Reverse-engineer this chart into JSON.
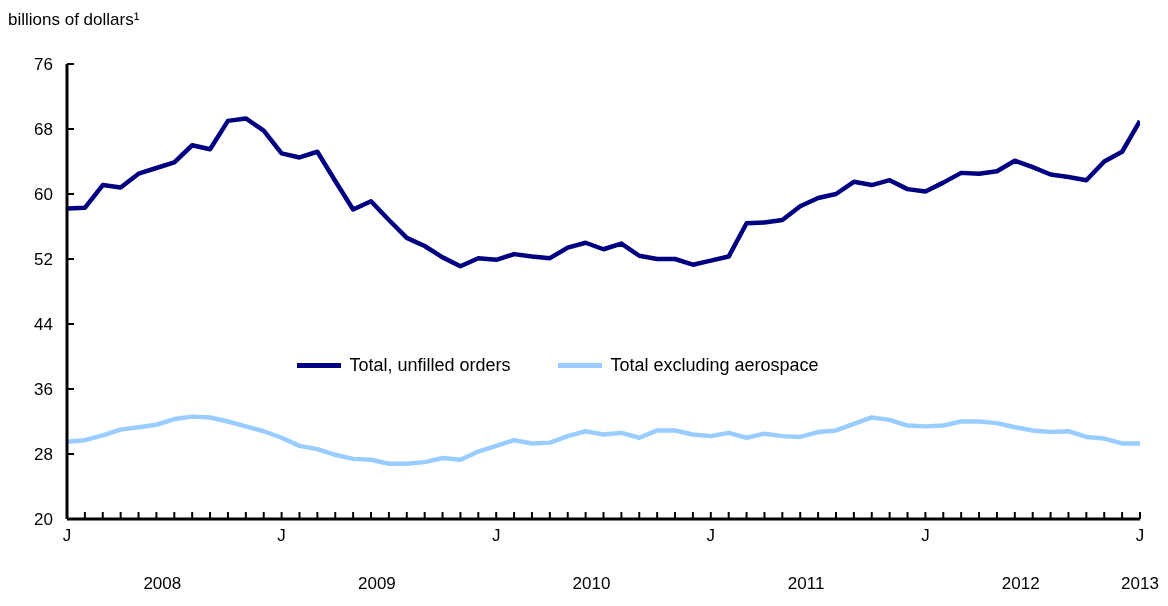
{
  "chart_data": {
    "type": "line",
    "ylabel": "billions of dollars¹",
    "categories": [
      "J",
      null,
      null,
      null,
      null,
      null,
      null,
      null,
      null,
      null,
      null,
      null,
      "J",
      null,
      null,
      null,
      null,
      null,
      null,
      null,
      null,
      null,
      null,
      null,
      "J",
      null,
      null,
      null,
      null,
      null,
      null,
      null,
      null,
      null,
      null,
      null,
      "J",
      null,
      null,
      null,
      null,
      null,
      null,
      null,
      null,
      null,
      null,
      null,
      "J",
      null,
      null,
      null,
      null,
      null,
      null,
      null,
      null,
      null,
      null,
      null,
      "J"
    ],
    "series": [
      {
        "name": "Total, unfilled orders",
        "color": "#000080",
        "values": [
          58.2,
          58.3,
          61.1,
          60.8,
          62.5,
          63.2,
          63.9,
          66.0,
          65.5,
          69.0,
          69.3,
          67.8,
          65.0,
          64.5,
          65.2,
          61.6,
          58.1,
          59.1,
          56.8,
          54.6,
          53.6,
          52.2,
          51.1,
          52.1,
          51.9,
          52.6,
          52.3,
          52.1,
          53.4,
          54.0,
          53.2,
          53.9,
          52.4,
          52.0,
          52.0,
          51.3,
          51.8,
          52.3,
          56.4,
          56.5,
          56.8,
          58.5,
          59.5,
          60.0,
          61.5,
          61.1,
          61.7,
          60.6,
          60.3,
          61.4,
          62.6,
          62.5,
          62.8,
          64.1,
          63.3,
          62.4,
          62.1,
          61.7,
          64.0,
          65.2,
          69.0
        ]
      },
      {
        "name": "Total excluding aerospace",
        "color": "#99ccff",
        "values": [
          29.5,
          29.7,
          30.3,
          31.0,
          31.3,
          31.6,
          32.3,
          32.6,
          32.5,
          32.0,
          31.4,
          30.8,
          30.0,
          29.0,
          28.6,
          27.9,
          27.4,
          27.3,
          26.8,
          26.8,
          27.0,
          27.5,
          27.3,
          28.3,
          29.0,
          29.7,
          29.3,
          29.4,
          30.2,
          30.8,
          30.4,
          30.6,
          30.0,
          30.9,
          30.9,
          30.4,
          30.2,
          30.6,
          30.0,
          30.5,
          30.2,
          30.1,
          30.7,
          30.9,
          31.7,
          32.5,
          32.2,
          31.5,
          31.4,
          31.5,
          32.0,
          32.0,
          31.8,
          31.3,
          30.9,
          30.7,
          30.8,
          30.1,
          29.9,
          29.3,
          29.3
        ]
      }
    ],
    "annotations": [
      "2008",
      "2009",
      "2010",
      "2011",
      "2012",
      "2013"
    ],
    "ylim": [
      20,
      76
    ],
    "yticks": [
      20,
      28,
      36,
      44,
      52,
      60,
      68,
      76
    ],
    "grid": false,
    "legend": "center",
    "marker": "none",
    "line_style": "solid"
  }
}
